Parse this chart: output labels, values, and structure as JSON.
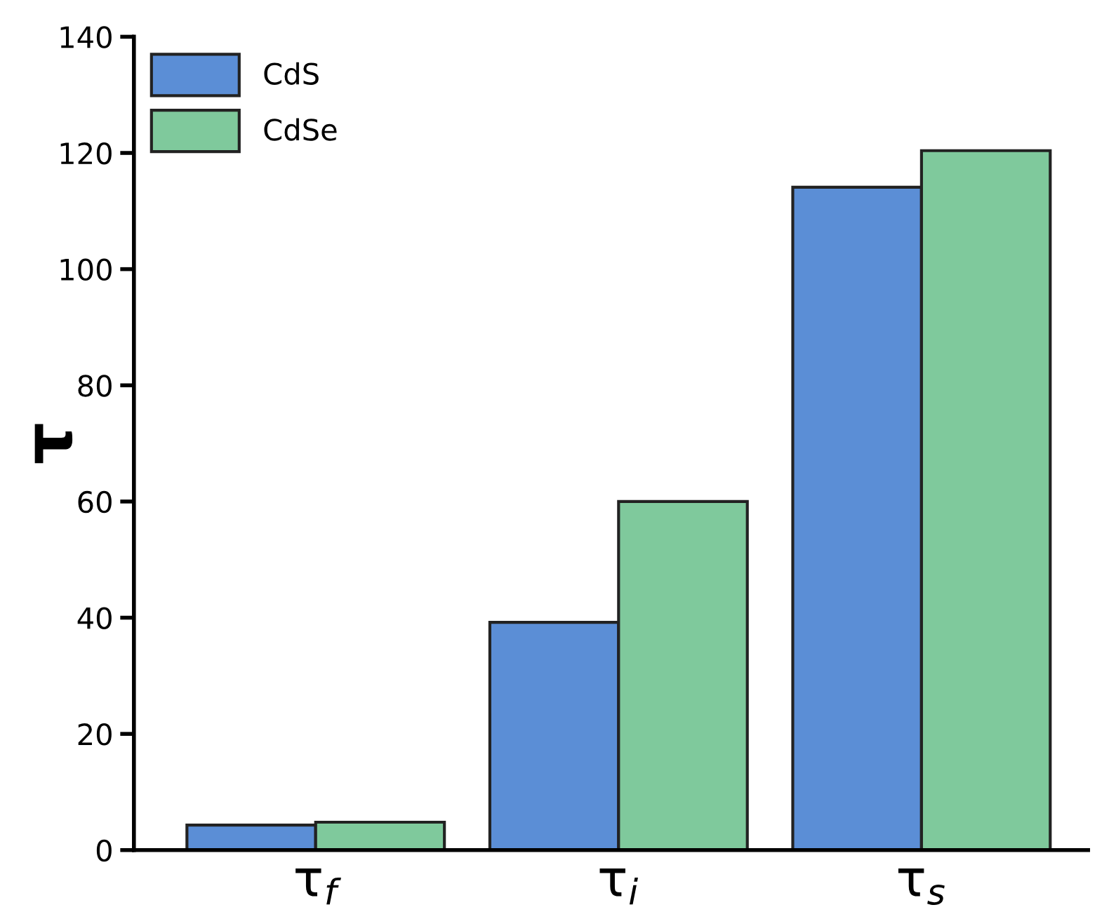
{
  "chart_data": {
    "type": "bar",
    "ylabel": "τ",
    "categories": [
      "τ$_{f}$",
      "τ$_{i}$",
      "τ$_{s}$"
    ],
    "series": [
      {
        "name": "CdS",
        "color": "#5b8ed6",
        "values": [
          4.3,
          39.2,
          114.1
        ]
      },
      {
        "name": "CdSe",
        "color": "#7fc99c",
        "values": [
          4.8,
          60.0,
          120.4
        ]
      }
    ],
    "ylim": [
      0,
      140
    ],
    "yticks": [
      0,
      20,
      40,
      60,
      80,
      100,
      120,
      140
    ],
    "grid": false,
    "legend": "top left"
  }
}
